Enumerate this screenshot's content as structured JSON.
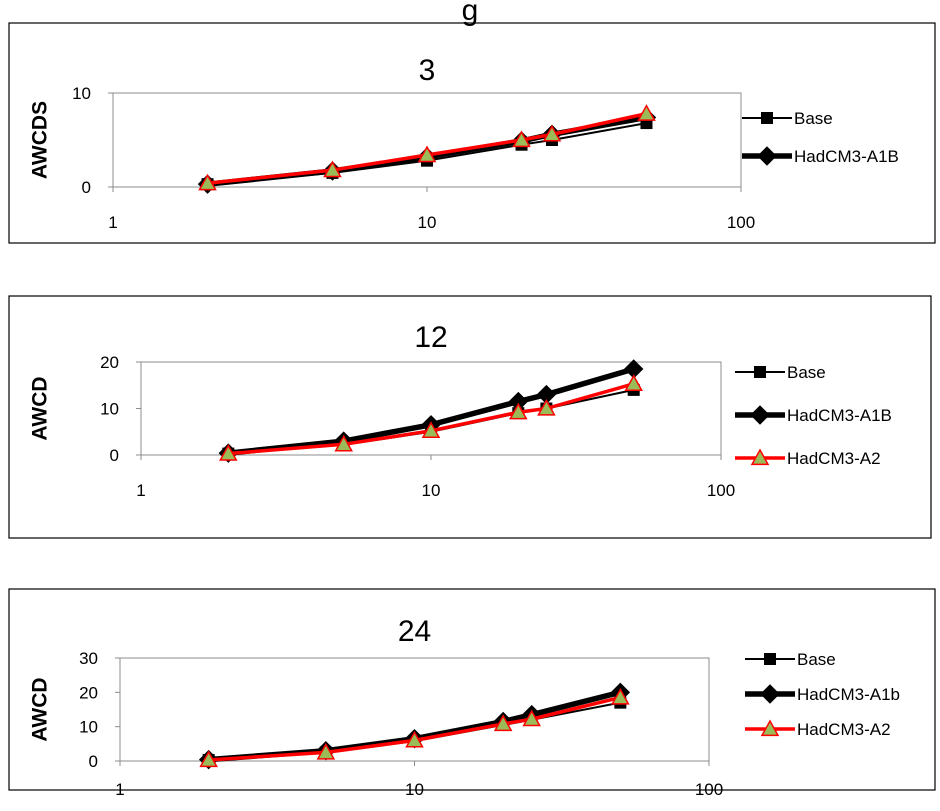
{
  "top_title": "g",
  "chart_data": [
    {
      "type": "line",
      "title": "3",
      "xlabel": "",
      "ylabel": "AWCDS",
      "x_scale": "log",
      "xlim": [
        1,
        100
      ],
      "ylim": [
        0,
        10
      ],
      "x_ticks": [
        "1",
        "10",
        "100"
      ],
      "y_ticks": [
        "0",
        "10"
      ],
      "x": [
        2,
        5,
        10,
        20,
        25,
        50
      ],
      "legend_position": "right",
      "series": [
        {
          "name": "Base",
          "marker": "square",
          "color": "#000000",
          "values": [
            0.3,
            1.5,
            2.8,
            4.5,
            5.0,
            6.8
          ]
        },
        {
          "name": "HadCM3-A1B",
          "marker": "diamond",
          "color": "#000000",
          "values": [
            0.3,
            1.7,
            3.2,
            4.9,
            5.6,
            7.4
          ]
        },
        {
          "name": "",
          "marker": "triangle",
          "color": "#ff0000",
          "values": [
            0.4,
            1.8,
            3.4,
            5.0,
            5.6,
            7.8
          ]
        }
      ]
    },
    {
      "type": "line",
      "title": "12",
      "xlabel": "",
      "ylabel": "AWCD",
      "x_scale": "log",
      "xlim": [
        1,
        100
      ],
      "ylim": [
        0,
        20
      ],
      "x_ticks": [
        "1",
        "10",
        "100"
      ],
      "y_ticks": [
        "0",
        "10",
        "20"
      ],
      "x": [
        2,
        5,
        10,
        20,
        25,
        50
      ],
      "legend_position": "right",
      "series": [
        {
          "name": "Base",
          "marker": "square",
          "color": "#000000",
          "values": [
            0.3,
            2.2,
            5.0,
            9.0,
            10.0,
            14.0
          ]
        },
        {
          "name": "HadCM3-A1B",
          "marker": "diamond",
          "color": "#000000",
          "values": [
            0.4,
            3.0,
            6.5,
            11.5,
            13.0,
            18.5
          ]
        },
        {
          "name": "HadCM3-A2",
          "marker": "triangle",
          "color": "#ff0000",
          "values": [
            0.3,
            2.3,
            5.2,
            9.2,
            10.0,
            15.3
          ]
        }
      ]
    },
    {
      "type": "line",
      "title": "24",
      "xlabel": "",
      "ylabel": "AWCD",
      "x_scale": "log",
      "xlim": [
        1,
        100
      ],
      "ylim": [
        0,
        30
      ],
      "x_ticks": [
        "1",
        "10",
        "100"
      ],
      "y_ticks": [
        "0",
        "10",
        "20",
        "30"
      ],
      "x": [
        2,
        5,
        10,
        20,
        25,
        50
      ],
      "legend_position": "right",
      "series": [
        {
          "name": "Base",
          "marker": "square",
          "color": "#000000",
          "values": [
            0.3,
            2.5,
            5.8,
            10.5,
            12.0,
            17.0
          ]
        },
        {
          "name": "HadCM3-A1b",
          "marker": "diamond",
          "color": "#000000",
          "values": [
            0.4,
            3.0,
            6.5,
            11.5,
            13.5,
            20.0
          ]
        },
        {
          "name": "HadCM3-A2",
          "marker": "triangle",
          "color": "#ff0000",
          "values": [
            0.3,
            2.5,
            6.0,
            10.8,
            12.2,
            18.5
          ]
        }
      ]
    }
  ]
}
